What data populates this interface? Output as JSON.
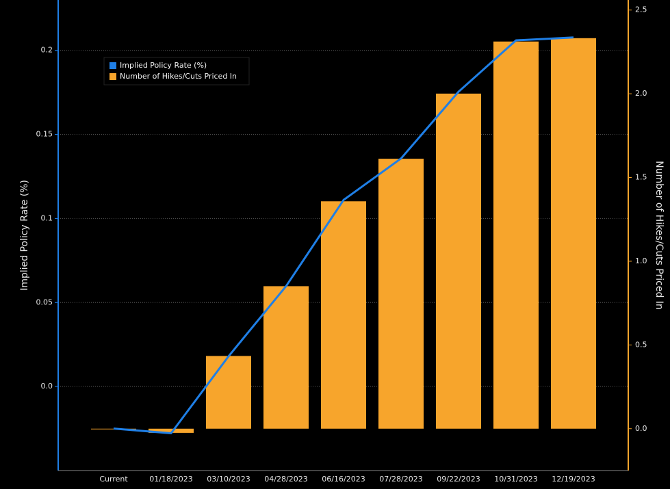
{
  "chart_data": {
    "type": "bar-line",
    "categories": [
      "Current",
      "01/18/2023",
      "03/10/2023",
      "04/28/2023",
      "06/16/2023",
      "07/28/2023",
      "09/22/2023",
      "10/31/2023",
      "12/19/2023"
    ],
    "series": [
      {
        "name": "Implied Policy Rate (%)",
        "color": "#1f7fe6",
        "type": "line",
        "values": [
          -0.025,
          -0.0278,
          0.018,
          0.0597,
          0.111,
          0.1357,
          0.1754,
          0.206,
          0.2077
        ]
      },
      {
        "name": "Number of Hikes/Cuts Priced In",
        "color": "#f7a52c",
        "type": "bar",
        "axis": "y2",
        "values": [
          0.0,
          -0.025,
          0.434,
          0.851,
          1.358,
          1.612,
          2.001,
          2.312,
          2.332
        ]
      }
    ],
    "ylabel": "Implied Policy Rate (%)",
    "y2label": "Number of Hikes/Cuts Priced In",
    "ylim": [
      -0.05,
      0.23
    ],
    "yticks": [
      {
        "value": 0,
        "label": "0.0"
      },
      0.05,
      0.1,
      0.15,
      0.2
    ],
    "y2lim": [
      -0.25,
      2.56
    ],
    "y2ticks": [
      {
        "value": 0,
        "label": "0.0"
      },
      0.5,
      {
        "value": 1,
        "label": "1.0"
      },
      1.5,
      {
        "value": 2,
        "label": "2.0"
      },
      2.5
    ],
    "grid": true,
    "legend": "upper-left"
  }
}
